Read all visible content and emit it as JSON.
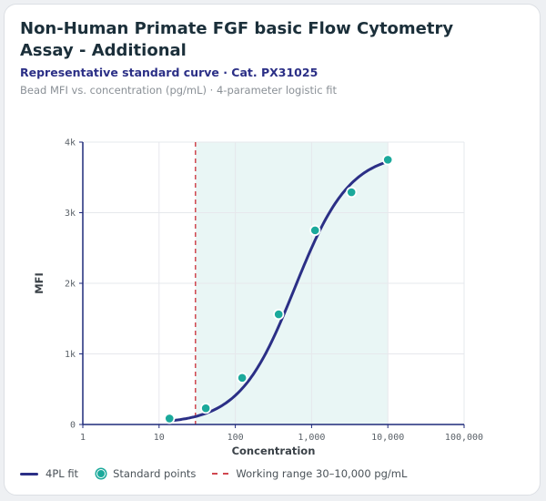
{
  "header": {
    "title": "Non-Human Primate FGF basic Flow Cytometry Assay - Additional",
    "subtitle": "Representative standard curve · Cat. PX31025",
    "caption": "Bead MFI vs. concentration (pg/mL) · 4-parameter logistic fit"
  },
  "legend": {
    "fit_label": "4PL fit",
    "points_label": "Standard points",
    "range_label": "Working range 30–10,000 pg/mL"
  },
  "colors": {
    "curve": "#2b2f86",
    "points": "#1ba99b",
    "range_line": "#d0474f",
    "range_band": "#e9f6f5",
    "axis": "#1f2a7a",
    "grid": "#e6e8ec"
  },
  "chart_data": {
    "type": "scatter",
    "xlabel": "Concentration",
    "ylabel": "MFI",
    "x_scale": "log",
    "xlim": [
      1,
      100000
    ],
    "ylim": [
      0,
      4000
    ],
    "x_ticks": [
      1,
      10,
      100,
      1000,
      10000,
      100000
    ],
    "x_tick_labels": [
      "1",
      "10",
      "100",
      "1,000",
      "10,000",
      "100,000"
    ],
    "y_ticks": [
      0,
      1000,
      2000,
      3000,
      4000
    ],
    "y_tick_labels": [
      "0",
      "1k",
      "2k",
      "3k",
      "4k"
    ],
    "grid": true,
    "series": [
      {
        "name": "Standard points",
        "x": [
          13.7,
          41,
          123,
          370,
          1111,
          3333,
          10000
        ],
        "y": [
          85,
          230,
          660,
          1560,
          2750,
          3290,
          3750
        ]
      }
    ],
    "fit": {
      "name": "4PL fit",
      "model": "4PL",
      "bottom": 10,
      "top": 3850,
      "ec50": 600,
      "hill": 1.2,
      "x_range": [
        13.7,
        10000
      ]
    },
    "working_range": {
      "min": 30,
      "max": 10000,
      "label": "Working range 30–10,000 pg/mL"
    }
  }
}
